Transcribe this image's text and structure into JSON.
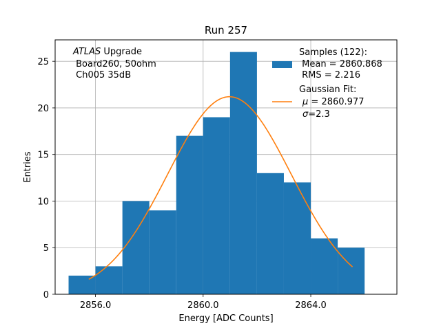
{
  "chart_data": {
    "type": "bar",
    "title": "Run 257",
    "xlabel": "Energy [ADC Counts]",
    "ylabel": "Entries",
    "xlim": [
      2854.5,
      2867.2
    ],
    "ylim": [
      0,
      27.3
    ],
    "grid": true,
    "x_ticks": [
      2856.0,
      2860.0,
      2864.0
    ],
    "x_tick_labels": [
      "2856.0",
      "2860.0",
      "2864.0"
    ],
    "y_ticks": [
      0,
      5,
      10,
      15,
      20,
      25
    ],
    "y_tick_labels": [
      "0",
      "5",
      "10",
      "15",
      "20",
      "25"
    ],
    "bin_edges": [
      2855.0,
      2856.0,
      2857.0,
      2858.0,
      2859.0,
      2860.0,
      2861.0,
      2862.0,
      2863.0,
      2864.0,
      2865.0,
      2866.0
    ],
    "counts": [
      2,
      3,
      10,
      9,
      17,
      19,
      26,
      13,
      12,
      6,
      5
    ],
    "bar_color": "#1f77b4",
    "fit": {
      "type": "gaussian",
      "mu": 2860.977,
      "sigma": 2.3,
      "amplitude": 21.2,
      "x_range": [
        2855.75,
        2865.55
      ],
      "color": "#ff7f0e"
    },
    "annotation": {
      "atlas": "ATLAS",
      "line1_rest": " Upgrade",
      "line2": " Board260, 50ohm",
      "line3": " Ch005 35dB"
    },
    "legend": {
      "placement": "top-right",
      "samples_line1": "Samples (122):",
      "samples_line2": " Mean = 2860.868",
      "samples_line3": " RMS = 2.216",
      "fit_line1": "Gaussian Fit:",
      "fit_line2_sym": "μ",
      "fit_line2_rest": " = 2860.977",
      "fit_line3_sym": "σ",
      "fit_line3_rest": "=2.3"
    }
  }
}
